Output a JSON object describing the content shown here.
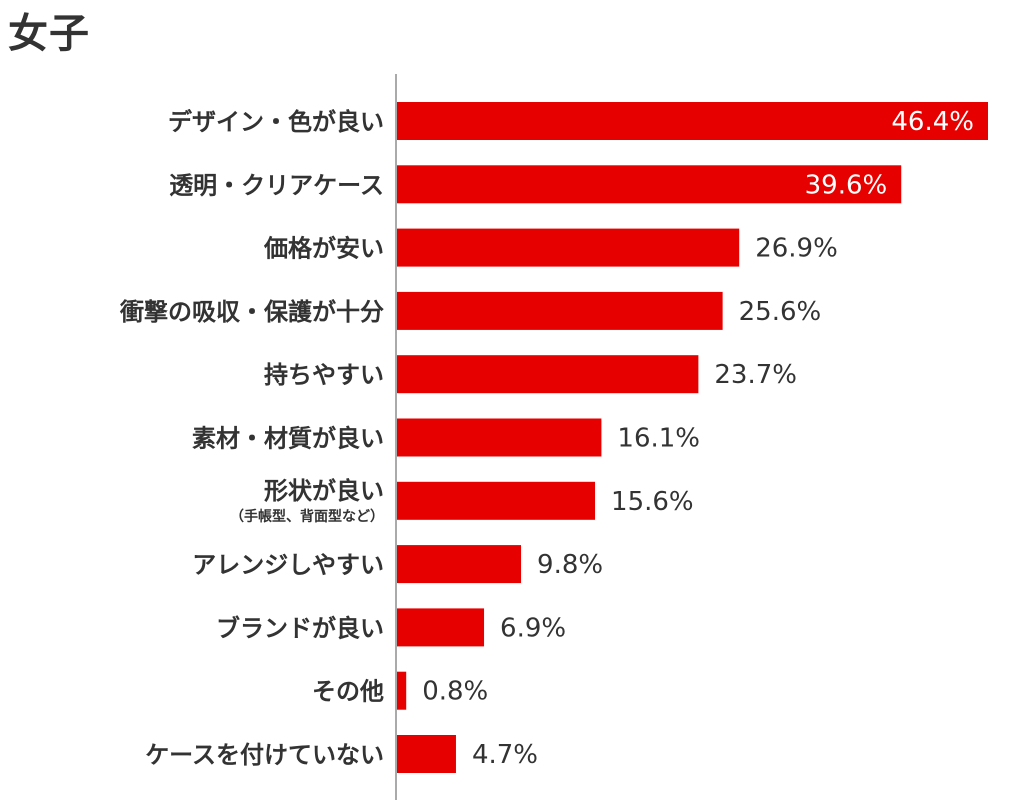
{
  "title": "女子",
  "colors": {
    "bar": "#e60000",
    "axis": "#aaaaaa",
    "text": "#333333",
    "label_inside": "#ffffff"
  },
  "chart_data": {
    "type": "bar",
    "orientation": "horizontal",
    "title": "",
    "xlabel": "",
    "ylabel": "",
    "unit": "%",
    "xlim": [
      0,
      46.4
    ],
    "grid": false,
    "legend": "none",
    "categories": [
      "デザイン・色が良い",
      "透明・クリアケース",
      "価格が安い",
      "衝撃の吸収・保護が十分",
      "持ちやすい",
      "素材・材質が良い",
      "形状が良い",
      "アレンジしやすい",
      "ブランドが良い",
      "その他",
      "ケースを付けていない"
    ],
    "sublabels": [
      "",
      "",
      "",
      "",
      "",
      "",
      "（手帳型、背面型など）",
      "",
      "",
      "",
      ""
    ],
    "values": [
      46.4,
      39.6,
      26.9,
      25.6,
      23.7,
      16.1,
      15.6,
      9.8,
      6.9,
      0.8,
      4.7
    ],
    "value_labels": [
      "46.4%",
      "39.6%",
      "26.9%",
      "25.6%",
      "23.7%",
      "16.1%",
      "15.6%",
      "9.8%",
      "6.9%",
      "0.8%",
      "4.7%"
    ],
    "labels_inside": [
      true,
      true,
      false,
      false,
      false,
      false,
      false,
      false,
      false,
      false,
      false
    ]
  }
}
